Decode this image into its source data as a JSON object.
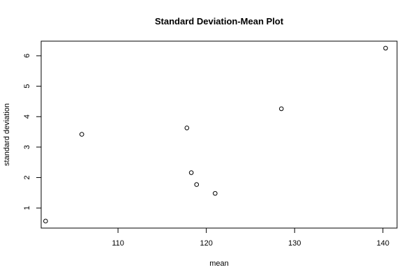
{
  "chart_data": {
    "type": "scatter",
    "title": "Standard Deviation-Mean Plot",
    "xlabel": "mean",
    "ylabel": "standard deviation",
    "xlim": [
      101.3,
      141.6
    ],
    "ylim": [
      0.34,
      6.48
    ],
    "x_ticks": [
      110,
      120,
      130,
      140
    ],
    "y_ticks": [
      1,
      2,
      3,
      4,
      5,
      6
    ],
    "x_tick_labels": [
      "110",
      "120",
      "130",
      "140"
    ],
    "y_tick_labels": [
      "1",
      "2",
      "3",
      "4",
      "5",
      "6"
    ],
    "grid": false,
    "legend": "none",
    "marker": "open-circle",
    "points": [
      {
        "x": 101.8,
        "y": 0.57
      },
      {
        "x": 105.9,
        "y": 3.42
      },
      {
        "x": 117.8,
        "y": 3.63
      },
      {
        "x": 118.3,
        "y": 2.16
      },
      {
        "x": 118.9,
        "y": 1.77
      },
      {
        "x": 121.0,
        "y": 1.48
      },
      {
        "x": 128.5,
        "y": 4.26
      },
      {
        "x": 140.3,
        "y": 6.25
      }
    ]
  }
}
